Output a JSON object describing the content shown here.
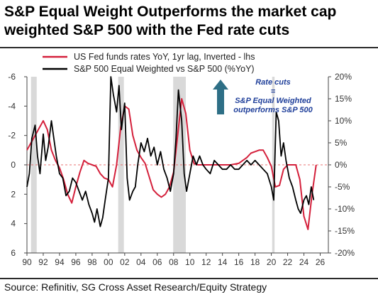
{
  "title": "S&P Equal Weight Outperforms the market cap weighted S&P 500 with the Fed rate cuts",
  "source": "Source: Refinitiv, SG Cross Asset Research/Equity Strategy",
  "colors": {
    "fed_line": "#d4203b",
    "sp_line": "#000000",
    "shading": "#d9d9d9",
    "zero_line": "#e87070",
    "arrow": "#2e6f86",
    "annotation": "#1f3f9a"
  },
  "chart_data": {
    "type": "line",
    "x_ticks": [
      "90",
      "92",
      "94",
      "96",
      "98",
      "00",
      "02",
      "04",
      "06",
      "08",
      "10",
      "12",
      "14",
      "16",
      "18",
      "20",
      "22",
      "24",
      "26"
    ],
    "xlim": [
      1990,
      2027
    ],
    "y_left": {
      "ticks": [
        "-6",
        "-4",
        "-2",
        "0",
        "2",
        "4",
        "6"
      ],
      "lim": [
        -6,
        6
      ],
      "inverted": true
    },
    "y_right": {
      "ticks": [
        "20%",
        "15%",
        "10%",
        "5%",
        "0%",
        "-5%",
        "-10%",
        "-15%",
        "-20%"
      ],
      "lim": [
        -20,
        20
      ]
    },
    "recession_shading": [
      [
        1990.5,
        1991.2
      ],
      [
        2001.2,
        2001.9
      ],
      [
        2007.95,
        2009.5
      ],
      [
        2020.1,
        2020.4
      ]
    ],
    "annotation": {
      "lines": [
        "Rate cuts",
        "=",
        "S&P Equal Weighted",
        "outperforms S&P 500"
      ],
      "arrow": "up"
    },
    "legend": {
      "position": "top",
      "icons": [
        "red-line-icon",
        "black-line-icon"
      ]
    },
    "series": [
      {
        "name": "US Fed funds rates YoY, 1yr lag, Inverted - lhs",
        "axis": "left",
        "x": [
          1990.0,
          1990.5,
          1991.0,
          1991.5,
          1992.0,
          1992.5,
          1993.0,
          1993.5,
          1994.0,
          1994.5,
          1995.0,
          1995.5,
          1996.0,
          1996.5,
          1997.0,
          1997.5,
          1998.0,
          1998.5,
          1999.0,
          1999.5,
          2000.0,
          2000.5,
          2001.0,
          2001.5,
          2002.0,
          2002.5,
          2003.0,
          2003.5,
          2004.0,
          2004.5,
          2005.0,
          2005.5,
          2006.0,
          2006.5,
          2007.0,
          2007.5,
          2008.0,
          2008.5,
          2009.0,
          2009.5,
          2010.0,
          2010.5,
          2011.0,
          2011.5,
          2012.0,
          2013.0,
          2014.0,
          2015.0,
          2016.0,
          2016.5,
          2017.0,
          2017.5,
          2018.0,
          2018.5,
          2019.0,
          2019.5,
          2020.0,
          2020.5,
          2021.0,
          2021.5,
          2022.0,
          2022.5,
          2023.0,
          2023.5,
          2024.0,
          2024.5,
          2025.0,
          2025.5
        ],
        "y": [
          -1.0,
          -1.5,
          -2.0,
          -2.5,
          -3.0,
          -2.4,
          -1.0,
          -0.3,
          0.2,
          1.0,
          2.0,
          2.6,
          1.5,
          0.5,
          -0.3,
          -0.1,
          0.0,
          0.1,
          0.6,
          0.9,
          1.0,
          1.5,
          0.0,
          -2.5,
          -4.0,
          -3.8,
          -2.0,
          -1.0,
          -0.5,
          -0.1,
          0.8,
          1.7,
          2.0,
          2.2,
          2.0,
          1.5,
          0.5,
          -2.0,
          -4.5,
          -3.5,
          -1.0,
          -0.1,
          0.0,
          0.0,
          0.0,
          0.0,
          0.0,
          0.0,
          -0.1,
          -0.3,
          -0.5,
          -0.8,
          -0.9,
          -1.0,
          -1.0,
          -0.5,
          0.1,
          1.5,
          1.4,
          0.3,
          0.0,
          0.0,
          0.0,
          1.0,
          3.5,
          4.4,
          2.0,
          0.0
        ]
      },
      {
        "name": "S&P 500 Equal Weighted vs S&P 500 (%YoY)",
        "axis": "right",
        "x": [
          1990.0,
          1990.3,
          1990.6,
          1991.0,
          1991.3,
          1991.6,
          1992.0,
          1992.3,
          1992.6,
          1993.0,
          1993.3,
          1993.6,
          1994.0,
          1994.4,
          1994.8,
          1995.2,
          1995.6,
          1996.0,
          1996.4,
          1996.8,
          1997.2,
          1997.6,
          1998.0,
          1998.3,
          1998.6,
          1999.0,
          1999.3,
          1999.6,
          2000.0,
          2000.3,
          2000.6,
          2001.0,
          2001.3,
          2001.6,
          2002.0,
          2002.3,
          2002.6,
          2003.0,
          2003.3,
          2003.6,
          2004.0,
          2004.4,
          2004.8,
          2005.2,
          2005.6,
          2006.0,
          2006.4,
          2006.8,
          2007.2,
          2007.6,
          2008.0,
          2008.3,
          2008.6,
          2009.0,
          2009.3,
          2009.6,
          2010.0,
          2010.4,
          2010.8,
          2011.2,
          2011.6,
          2012.0,
          2012.5,
          2013.0,
          2013.5,
          2014.0,
          2014.5,
          2015.0,
          2015.5,
          2016.0,
          2016.5,
          2017.0,
          2017.5,
          2018.0,
          2018.5,
          2019.0,
          2019.5,
          2020.0,
          2020.3,
          2020.6,
          2020.9,
          2021.2,
          2021.5,
          2021.8,
          2022.2,
          2022.6,
          2023.0,
          2023.3,
          2023.6,
          2024.0,
          2024.3,
          2024.6,
          2024.9,
          2025.2
        ],
        "y": [
          -5,
          -2,
          6,
          9,
          2,
          -2,
          7,
          1,
          4,
          10,
          6,
          2,
          -2,
          -3,
          -7,
          -6,
          -3,
          -4,
          -6,
          -8,
          -6,
          -9,
          -11,
          -13,
          -10,
          -14,
          -12,
          -8,
          -3,
          20,
          16,
          12,
          18,
          8,
          14,
          -3,
          -8,
          -6,
          -5,
          0,
          5,
          3,
          6,
          2,
          4,
          0,
          3,
          -1,
          -3,
          -6,
          -2,
          6,
          17,
          10,
          -2,
          -6,
          -2,
          2,
          0,
          2,
          0,
          -1,
          -2,
          1,
          0,
          -1,
          -1,
          0,
          -1,
          -1,
          0,
          1,
          0,
          1,
          0,
          -1,
          -2,
          -5,
          -8,
          12,
          10,
          2,
          5,
          1,
          -3,
          -5,
          -8,
          -10,
          -11,
          -8,
          -7,
          -9,
          -5,
          -8
        ]
      }
    ]
  }
}
